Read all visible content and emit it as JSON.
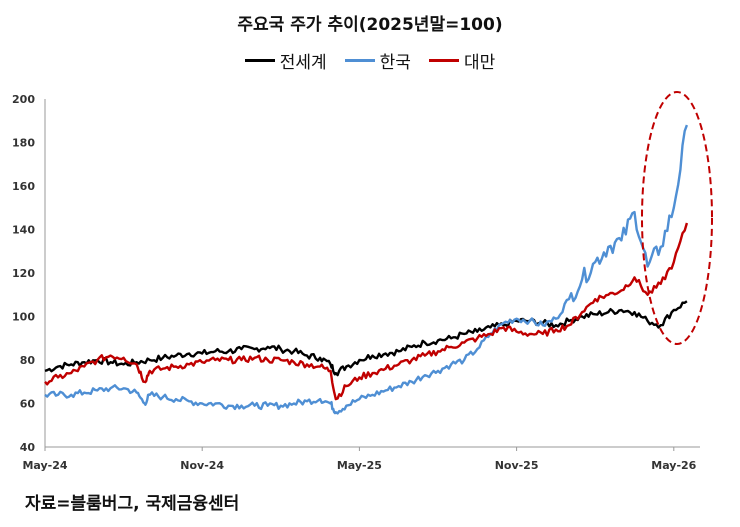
{
  "chart_data": {
    "type": "line",
    "title": "주요국 주가 추이(2025년말=100)",
    "xlabel": "",
    "ylabel": "",
    "ylim": [
      40,
      200
    ],
    "yticks": [
      40,
      60,
      80,
      100,
      120,
      140,
      160,
      180,
      200
    ],
    "xticks": [
      "May-24",
      "Nov-24",
      "May-25",
      "Nov-25",
      "May-26"
    ],
    "x_unit": "months since May-24",
    "legend_position": "top",
    "grid": false,
    "series": [
      {
        "name": "전세계",
        "color": "#000000",
        "x": [
          0,
          0.5,
          1,
          1.5,
          2,
          2.5,
          3,
          3.5,
          4,
          4.5,
          5,
          5.5,
          6,
          6.5,
          7,
          7.5,
          8,
          8.5,
          9,
          9.5,
          10,
          10.5,
          10.9,
          11.1,
          11.5,
          12,
          12.5,
          13,
          13.5,
          14,
          14.5,
          15,
          15.5,
          16,
          16.5,
          17,
          17.5,
          18,
          18.5,
          19,
          19.5,
          20,
          20.5,
          21,
          21.5,
          22,
          22.5,
          23,
          23.5,
          24,
          24.5
        ],
        "values": [
          75,
          77,
          78,
          79,
          80,
          79,
          78,
          79,
          80,
          81,
          82,
          83,
          83,
          84,
          84,
          85,
          85,
          86,
          85,
          84,
          82,
          81,
          78,
          74,
          77,
          80,
          82,
          83,
          84,
          86,
          88,
          89,
          90,
          92,
          93,
          95,
          96,
          98,
          98,
          97,
          96,
          98,
          100,
          101,
          102,
          103,
          102,
          98,
          96,
          103,
          107
        ]
      },
      {
        "name": "한국",
        "color": "#4f8fd4",
        "x": [
          0,
          0.5,
          1,
          1.5,
          2,
          2.5,
          3,
          3.5,
          3.8,
          4.0,
          4.5,
          5,
          5.5,
          6,
          6.5,
          7,
          7.5,
          8,
          8.5,
          9,
          9.5,
          10,
          10.5,
          10.9,
          11.1,
          11.5,
          12,
          12.5,
          13,
          13.5,
          14,
          14.5,
          15,
          15.5,
          16,
          16.5,
          17,
          17.5,
          18,
          18.5,
          19,
          19.5,
          20,
          20.5,
          21,
          21.5,
          22,
          22.5,
          23,
          23.5,
          24,
          24.5
        ],
        "values": [
          64,
          64,
          64,
          65,
          66,
          67,
          67,
          65,
          60,
          64,
          63,
          62,
          61,
          60,
          60,
          59,
          59,
          59,
          59,
          59,
          60,
          61,
          62,
          60,
          56,
          59,
          62,
          64,
          66,
          68,
          70,
          73,
          75,
          78,
          80,
          85,
          92,
          97,
          99,
          98,
          96,
          99,
          108,
          117,
          125,
          132,
          135,
          148,
          123,
          132,
          150,
          188
        ]
      },
      {
        "name": "대만",
        "color": "#c00000",
        "x": [
          0,
          0.5,
          1,
          1.5,
          2,
          2.5,
          3,
          3.5,
          3.8,
          4.0,
          4.5,
          5,
          5.5,
          6,
          6.5,
          7,
          7.5,
          8,
          8.5,
          9,
          9.5,
          10,
          10.5,
          10.9,
          11.1,
          11.5,
          12,
          12.5,
          13,
          13.5,
          14,
          14.5,
          15,
          15.5,
          16,
          16.5,
          17,
          17.5,
          18,
          18.5,
          19,
          19.5,
          20,
          20.5,
          21,
          21.5,
          22,
          22.5,
          23,
          23.5,
          24,
          24.5
        ],
        "values": [
          70,
          72,
          74,
          77,
          80,
          82,
          81,
          78,
          70,
          75,
          76,
          77,
          78,
          79,
          80,
          80,
          80,
          81,
          80,
          80,
          79,
          78,
          77,
          75,
          62,
          68,
          72,
          74,
          76,
          78,
          80,
          82,
          84,
          86,
          88,
          90,
          92,
          95,
          93,
          92,
          92,
          94,
          96,
          102,
          108,
          110,
          112,
          118,
          110,
          115,
          125,
          143
        ]
      }
    ]
  },
  "source_note": "자료=블룸버그, 국제금융센터",
  "highlight_color": "#c00000"
}
